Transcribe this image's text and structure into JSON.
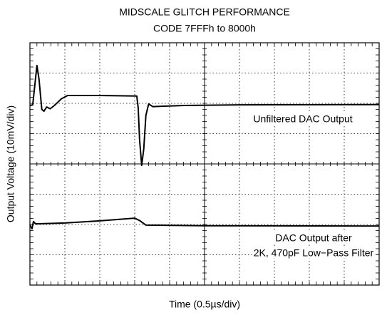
{
  "chart_data": {
    "type": "line",
    "title": "MIDSCALE GLITCH PERFORMANCE",
    "subtitle": "CODE 7FFFh to 8000h",
    "x_label": "Time (0.5µs/div)",
    "y_label": "Output Voltage (10mV/div)",
    "xlim": [
      0,
      5
    ],
    "ylim": [
      0,
      80
    ],
    "xticks": [
      0,
      0.5,
      1,
      1.5,
      2,
      2.5,
      3,
      3.5,
      4,
      4.5,
      5
    ],
    "yticks": [
      0,
      10,
      20,
      30,
      40,
      50,
      60,
      70,
      80
    ],
    "grid": true,
    "annotations": [
      "Unfiltered DAC Output",
      "DAC Output after",
      "2K, 470pF Low−Pass Filter"
    ],
    "series": [
      {
        "color": "#000000",
        "x": [
          0,
          0.04,
          0.07,
          0.1,
          0.13,
          0.17,
          0.2,
          0.24,
          0.29,
          0.35,
          0.45,
          0.54,
          1.0,
          1.53,
          1.55,
          1.57,
          1.6,
          1.63,
          1.66,
          1.7,
          1.76,
          1.85,
          2.2,
          3,
          5
        ],
        "values": [
          59.3,
          59.5,
          66,
          72.5,
          68,
          58,
          57.4,
          58.8,
          58.2,
          59.3,
          61.5,
          62.6,
          62.6,
          62.4,
          58.5,
          48,
          39.5,
          45,
          56,
          59.8,
          58.9,
          59,
          59.3,
          59.5,
          59.6
        ]
      },
      {
        "color": "#000000",
        "x": [
          0,
          0.03,
          0.05,
          0.08,
          0.5,
          1.0,
          1.5,
          1.57,
          1.66,
          2.5,
          5
        ],
        "values": [
          19.8,
          18.6,
          21,
          20.2,
          20.5,
          21.2,
          22.1,
          21.3,
          19.8,
          19.6,
          19.5
        ]
      }
    ]
  }
}
